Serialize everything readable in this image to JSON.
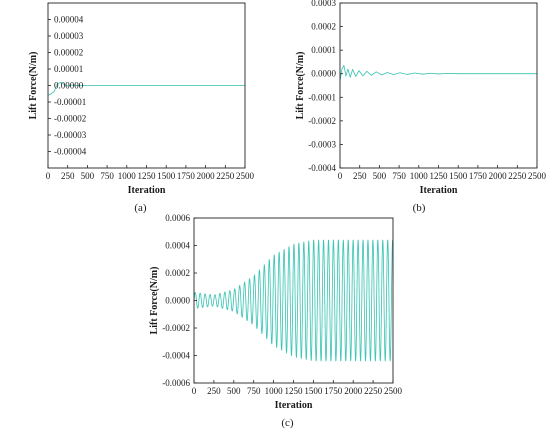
{
  "colors": {
    "series": "#3cc4b4",
    "glow": "#d4f5f0",
    "axis": "#222222"
  },
  "chart_data": [
    {
      "type": "line",
      "panel_label": "(a)",
      "xlabel": "Iteration",
      "ylabel": "Lift Force(N/m)",
      "xlim": [
        0,
        2500
      ],
      "ylim": [
        -5e-05,
        5e-05
      ],
      "xticks": [
        "0",
        "250",
        "500",
        "750",
        "1000",
        "1250",
        "1500",
        "1750",
        "2000",
        "2250",
        "2500"
      ],
      "yticks": [
        "-0.00004",
        "-0.00003",
        "-0.00002",
        "-0.00001",
        "0.00000",
        "0.00001",
        "0.00002",
        "0.00003",
        "0.00004"
      ],
      "grid": false,
      "series": [
        {
          "points": [
            [
              0,
              -6e-06
            ],
            [
              40,
              -5e-06
            ],
            [
              80,
              -3.5e-06
            ],
            [
              120,
              1e-06
            ],
            [
              160,
              1.8e-06
            ],
            [
              200,
              8e-07
            ],
            [
              250,
              -4e-07
            ],
            [
              300,
              3e-07
            ],
            [
              350,
              1e-07
            ],
            [
              400,
              -1e-07
            ],
            [
              500,
              0.0
            ],
            [
              2500,
              0.0
            ]
          ]
        }
      ]
    },
    {
      "type": "line",
      "panel_label": "(b)",
      "xlabel": "Iteration",
      "ylabel": "Lift Force(N/m)",
      "xlim": [
        0,
        2500
      ],
      "ylim": [
        -0.0004,
        0.0003
      ],
      "xticks": [
        "0",
        "250",
        "500",
        "750",
        "1000",
        "1250",
        "1500",
        "1750",
        "2000",
        "2250",
        "2500"
      ],
      "yticks": [
        "-0.0004",
        "-0.0003",
        "-0.0002",
        "-0.0001",
        "0.0000",
        "0.0001",
        "0.0002",
        "0.0003"
      ],
      "grid": false,
      "series": [
        {
          "points": [
            [
              0,
              -3e-05
            ],
            [
              25,
              2e-05
            ],
            [
              50,
              3.5e-05
            ],
            [
              75,
              -1e-05
            ],
            [
              100,
              2e-05
            ],
            [
              130,
              -1.5e-05
            ],
            [
              160,
              1.8e-05
            ],
            [
              200,
              -1.2e-05
            ],
            [
              240,
              1.3e-05
            ],
            [
              290,
              -9e-06
            ],
            [
              340,
              1e-05
            ],
            [
              400,
              -7e-06
            ],
            [
              460,
              8e-06
            ],
            [
              530,
              -5e-06
            ],
            [
              600,
              5e-06
            ],
            [
              680,
              -4e-06
            ],
            [
              760,
              4e-06
            ],
            [
              850,
              -3e-06
            ],
            [
              950,
              3e-06
            ],
            [
              1050,
              -2e-06
            ],
            [
              1150,
              2e-06
            ],
            [
              1250,
              -1e-06
            ],
            [
              1350,
              1e-06
            ],
            [
              1500,
              0.0
            ],
            [
              2500,
              0.0
            ]
          ]
        }
      ]
    },
    {
      "type": "line",
      "panel_label": "(c)",
      "xlabel": "Iteration",
      "ylabel": "Lift Force(N/m)",
      "xlim": [
        0,
        2500
      ],
      "ylim": [
        -0.0006,
        0.0006
      ],
      "xticks": [
        "0",
        "250",
        "500",
        "750",
        "1000",
        "1250",
        "1500",
        "1750",
        "2000",
        "2250",
        "2500"
      ],
      "yticks": [
        "-0.0006",
        "-0.0004",
        "-0.0002",
        "0.0000",
        "0.0002",
        "0.0004",
        "0.0006"
      ],
      "grid": false,
      "series": [
        {
          "oscillation": {
            "period": 62,
            "amplitude_envelope": [
              [
                0,
                6e-05
              ],
              [
                250,
                4e-05
              ],
              [
                500,
                8e-05
              ],
              [
                750,
                0.00018
              ],
              [
                1000,
                0.00033
              ],
              [
                1250,
                0.00041
              ],
              [
                1500,
                0.00044
              ],
              [
                2500,
                0.00044
              ]
            ]
          }
        }
      ]
    }
  ]
}
